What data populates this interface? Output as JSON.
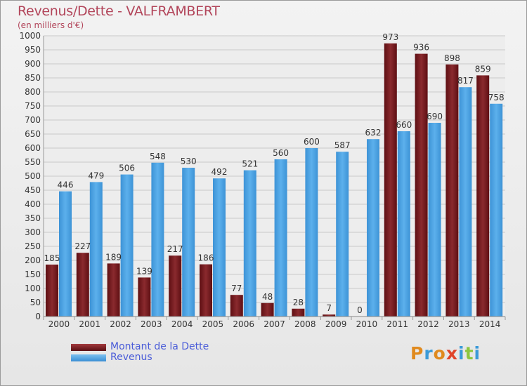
{
  "chart_data": {
    "type": "bar",
    "title": "Revenus/Dette - VALFRAMBERT",
    "subtitle": "(en milliers d'€)",
    "categories": [
      "2000",
      "2001",
      "2002",
      "2003",
      "2004",
      "2005",
      "2006",
      "2007",
      "2008",
      "2009",
      "2010",
      "2011",
      "2012",
      "2013",
      "2014"
    ],
    "series": [
      {
        "name": "Montant de la Dette",
        "color": "#7a1a1e",
        "values": [
          185,
          227,
          189,
          139,
          217,
          186,
          77,
          48,
          28,
          7,
          0,
          973,
          936,
          898,
          859
        ]
      },
      {
        "name": "Revenus",
        "color": "#4ea6e6",
        "values": [
          446,
          479,
          506,
          548,
          530,
          492,
          521,
          560,
          600,
          587,
          632,
          660,
          690,
          817,
          758
        ]
      }
    ],
    "ylim": [
      0,
      1000
    ],
    "ytick_step": 50,
    "grid": true,
    "legend": "bottom-left"
  },
  "logo": {
    "text": "Proxiti"
  }
}
